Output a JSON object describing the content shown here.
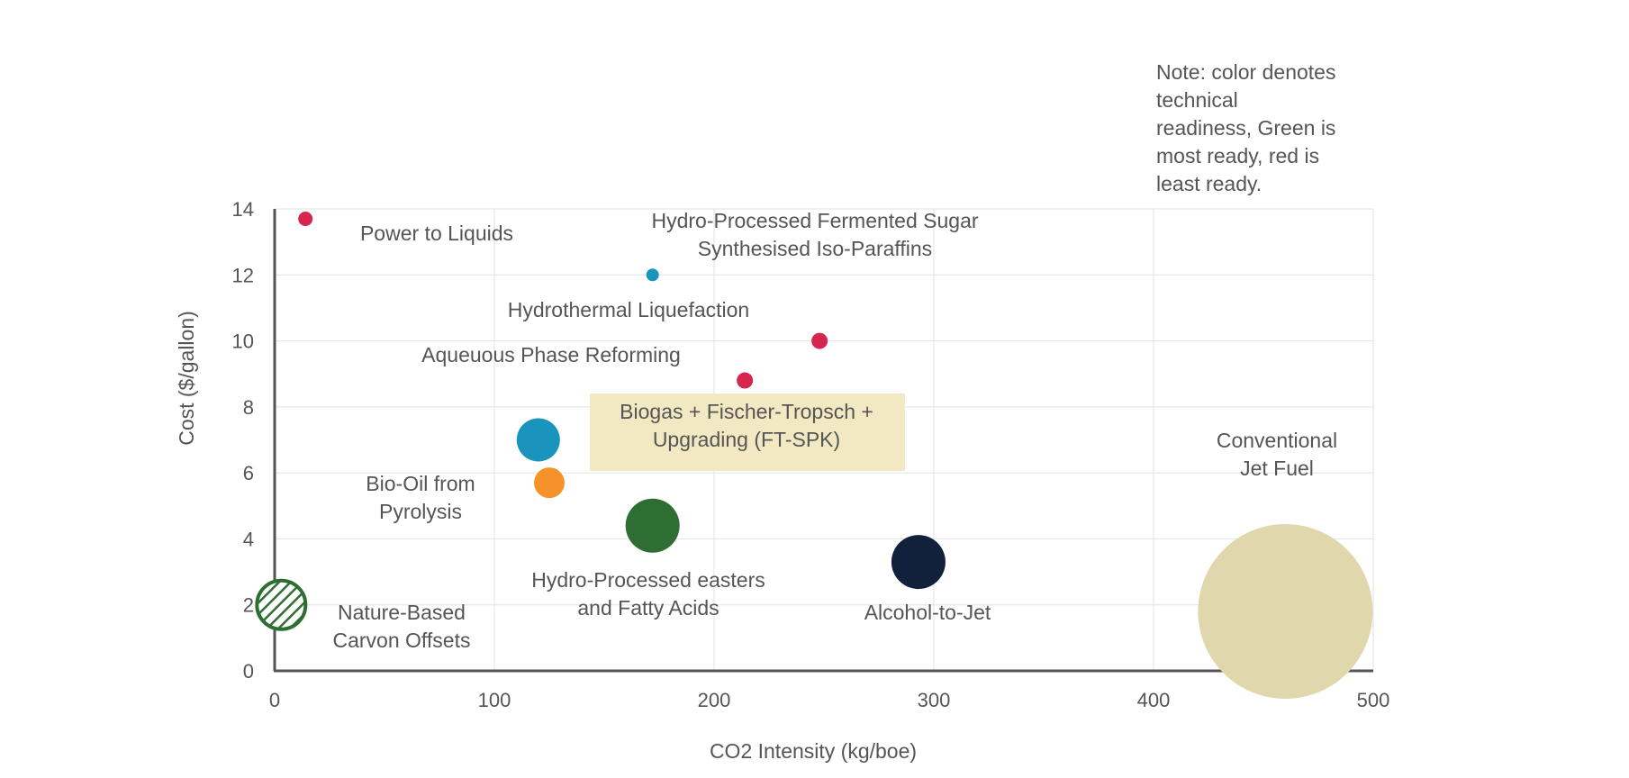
{
  "chart_data": {
    "type": "scatter",
    "title": "",
    "xlabel": "CO2 Intensity (kg/boe)",
    "ylabel": "Cost ($/gallon)",
    "xlim": [
      0,
      500
    ],
    "ylim": [
      0,
      14
    ],
    "x_ticks": [
      0,
      100,
      200,
      300,
      400,
      500
    ],
    "y_ticks": [
      0,
      2,
      4,
      6,
      8,
      10,
      12,
      14
    ],
    "grid": true,
    "note": [
      "Note: color denotes",
      "technical",
      "readiness, Green is",
      "most ready, red is",
      "least ready."
    ],
    "colors": {
      "red": "#d6264f",
      "blue": "#1b94bd",
      "orange": "#f5922a",
      "green": "#2e6e32",
      "navy": "#11213b",
      "tan": "#e1d7ad",
      "label_box": "#f2e8c2"
    },
    "points": [
      {
        "name": [
          "Power to Liquids"
        ],
        "x": 14,
        "y": 13.7,
        "size": 8,
        "color": "#d6264f"
      },
      {
        "name": [
          "Hydro-Processed Fermented Sugar",
          "Synthesised Iso-Paraffins"
        ],
        "x": 172,
        "y": 12.0,
        "size": 7,
        "color": "#1b94bd"
      },
      {
        "name": [
          "Hydrothermal Liquefaction"
        ],
        "x": 248,
        "y": 10.0,
        "size": 9,
        "color": "#d6264f"
      },
      {
        "name": [
          "Aqueuous Phase Reforming"
        ],
        "x": 214,
        "y": 8.8,
        "size": 9,
        "color": "#d6264f"
      },
      {
        "name": [
          "Biogas + Fischer-Tropsch +",
          "Upgrading (FT-SPK)"
        ],
        "x": 120,
        "y": 7.0,
        "size": 24,
        "color": "#1b94bd"
      },
      {
        "name": [
          "Bio-Oil from",
          "Pyrolysis"
        ],
        "x": 125,
        "y": 5.7,
        "size": 17,
        "color": "#f5922a"
      },
      {
        "name": [
          "Hydro-Processed easters",
          "and Fatty Acids"
        ],
        "x": 172,
        "y": 4.4,
        "size": 30,
        "color": "#2e6e32"
      },
      {
        "name": [
          "Alcohol-to-Jet"
        ],
        "x": 293,
        "y": 3.3,
        "size": 30,
        "color": "#11213b"
      },
      {
        "name": [
          "Nature-Based",
          "Carvon Offsets"
        ],
        "x": 3,
        "y": 2.0,
        "size": 27,
        "color": "#2e6e32",
        "hatched": true
      },
      {
        "name": [
          "Conventional",
          "Jet Fuel"
        ],
        "x": 460,
        "y": 1.8,
        "size": 97,
        "color": "#e1d7ad"
      }
    ]
  }
}
